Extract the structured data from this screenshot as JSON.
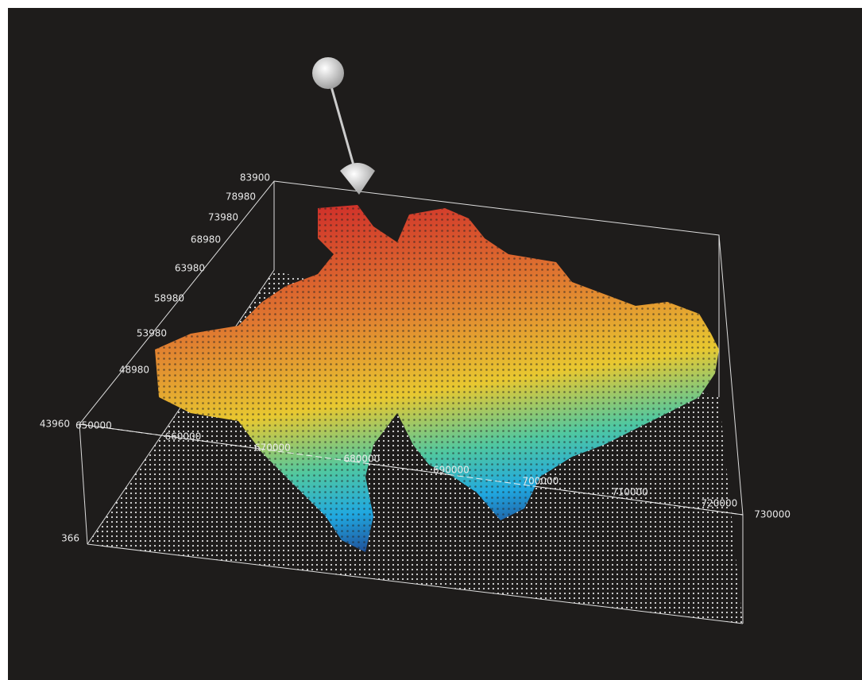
{
  "z_axis": {
    "labels": [
      "83900",
      "78980",
      "73980",
      "68980",
      "63980",
      "58980",
      "53980",
      "48980",
      "43960",
      "366"
    ]
  },
  "x_axis": {
    "labels": [
      "650000",
      "660000",
      "670000",
      "680000",
      "690000",
      "700000",
      "710000",
      "720000",
      "730000"
    ]
  }
}
